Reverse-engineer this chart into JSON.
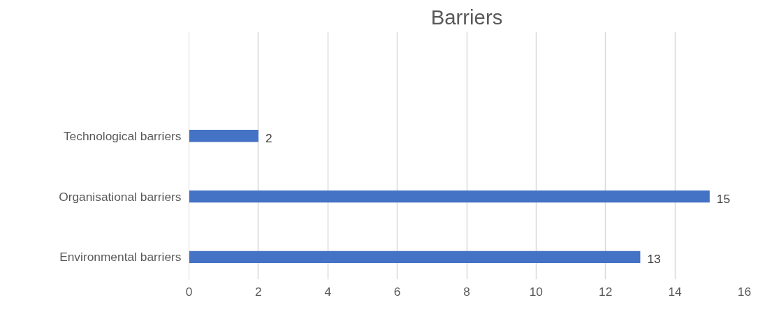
{
  "chart_data": {
    "type": "bar",
    "orientation": "horizontal",
    "title": "Barriers",
    "categories": [
      "Technological barriers",
      "Organisational barriers",
      "Environmental barriers"
    ],
    "values": [
      2,
      15,
      13
    ],
    "color": "#4472c4",
    "data_labels": true,
    "xlim": [
      0,
      16
    ],
    "xticks": [
      0,
      2,
      4,
      6,
      8,
      10,
      12,
      14,
      16
    ],
    "grid": "x"
  }
}
